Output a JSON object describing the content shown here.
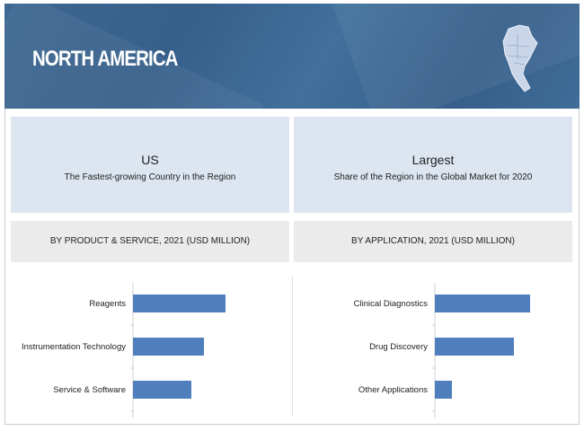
{
  "header": {
    "title": "NORTH AMERICA",
    "map_icon": "north-america-map-icon"
  },
  "info": [
    {
      "big": "US",
      "small": "The Fastest-growing Country in the Region"
    },
    {
      "big": "Largest",
      "small": "Share of the Region in the Global Market for 2020"
    }
  ],
  "chart_data": [
    {
      "type": "bar",
      "orientation": "horizontal",
      "title": "BY PRODUCT  & SERVICE, 2021 (USD MILLION)",
      "categories": [
        "Reagents",
        "Instrumentation Technology",
        "Service & Software"
      ],
      "values": [
        103,
        79,
        65
      ],
      "color": "#4f7fbd",
      "note_scale": "relative, no axis values printed"
    },
    {
      "type": "bar",
      "orientation": "horizontal",
      "title": "BY APPLICATION,  2021 (USD MILLION)",
      "categories": [
        "Clinical Diagnostics",
        "Drug Discovery",
        "Other Applications"
      ],
      "values": [
        106,
        88,
        19
      ],
      "color": "#4f7fbd",
      "note_scale": "relative, no axis values printed"
    }
  ]
}
